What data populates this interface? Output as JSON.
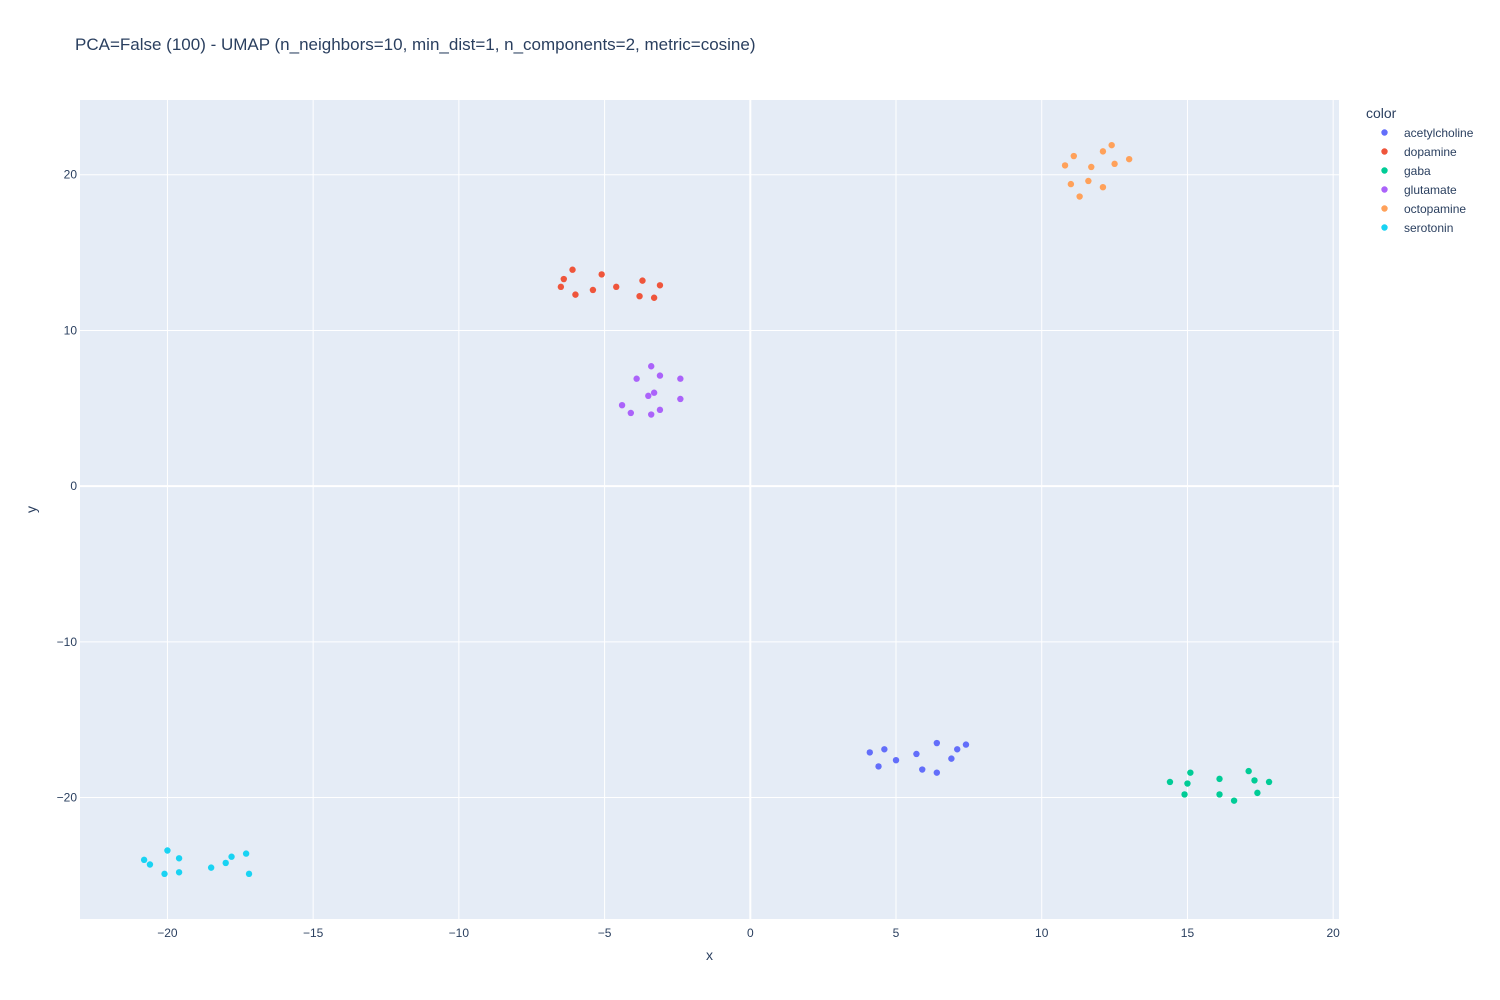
{
  "chart_data": {
    "type": "scatter",
    "title": "PCA=False (100) - UMAP (n_neighbors=10, min_dist=1, n_components=2, metric=cosine)",
    "xlabel": "x",
    "ylabel": "y",
    "xlim": [
      -23,
      20.2
    ],
    "ylim": [
      -27.8,
      24.8
    ],
    "xticks": [
      -20,
      -15,
      -10,
      -5,
      0,
      5,
      10,
      15,
      20
    ],
    "yticks": [
      -20,
      -10,
      0,
      10,
      20
    ],
    "tick_labels_x": [
      "−20",
      "−15",
      "−10",
      "−5",
      "0",
      "5",
      "10",
      "15",
      "20"
    ],
    "tick_labels_y": [
      "−20",
      "−10",
      "0",
      "10",
      "20"
    ],
    "grid": true,
    "legend_title": "color",
    "legend_position": "top-right",
    "colors": {
      "plot_bg": "#e5ecf6",
      "grid": "#ffffff",
      "text": "#2a3f5f"
    },
    "series": [
      {
        "name": "acetylcholine",
        "color": "#636efa",
        "points": [
          [
            4.1,
            -17.1
          ],
          [
            4.4,
            -18.0
          ],
          [
            4.6,
            -16.9
          ],
          [
            5.0,
            -17.6
          ],
          [
            5.7,
            -17.2
          ],
          [
            5.9,
            -18.2
          ],
          [
            6.4,
            -16.5
          ],
          [
            6.4,
            -18.4
          ],
          [
            6.9,
            -17.5
          ],
          [
            7.1,
            -16.9
          ],
          [
            7.4,
            -16.6
          ]
        ]
      },
      {
        "name": "dopamine",
        "color": "#ef553b",
        "points": [
          [
            -6.5,
            12.8
          ],
          [
            -6.4,
            13.3
          ],
          [
            -6.1,
            13.9
          ],
          [
            -6.0,
            12.3
          ],
          [
            -5.4,
            12.6
          ],
          [
            -5.1,
            13.6
          ],
          [
            -4.6,
            12.8
          ],
          [
            -3.8,
            12.2
          ],
          [
            -3.7,
            13.2
          ],
          [
            -3.3,
            12.1
          ],
          [
            -3.1,
            12.9
          ]
        ]
      },
      {
        "name": "gaba",
        "color": "#00cc96",
        "points": [
          [
            14.4,
            -19.0
          ],
          [
            14.9,
            -19.8
          ],
          [
            15.0,
            -19.1
          ],
          [
            15.1,
            -18.4
          ],
          [
            16.1,
            -18.8
          ],
          [
            16.1,
            -19.8
          ],
          [
            16.6,
            -20.2
          ],
          [
            17.1,
            -18.3
          ],
          [
            17.3,
            -18.9
          ],
          [
            17.4,
            -19.7
          ],
          [
            17.8,
            -19.0
          ]
        ]
      },
      {
        "name": "glutamate",
        "color": "#ab63fa",
        "points": [
          [
            -4.4,
            5.2
          ],
          [
            -4.1,
            4.7
          ],
          [
            -3.9,
            6.9
          ],
          [
            -3.5,
            5.8
          ],
          [
            -3.4,
            7.7
          ],
          [
            -3.4,
            4.6
          ],
          [
            -3.3,
            6.0
          ],
          [
            -3.1,
            7.1
          ],
          [
            -3.1,
            4.9
          ],
          [
            -2.4,
            6.9
          ],
          [
            -2.4,
            5.6
          ]
        ]
      },
      {
        "name": "octopamine",
        "color": "#ffa15a",
        "points": [
          [
            10.8,
            20.6
          ],
          [
            11.0,
            19.4
          ],
          [
            11.1,
            21.2
          ],
          [
            11.3,
            18.6
          ],
          [
            11.6,
            19.6
          ],
          [
            11.7,
            20.5
          ],
          [
            12.1,
            21.5
          ],
          [
            12.1,
            19.2
          ],
          [
            12.4,
            21.9
          ],
          [
            12.5,
            20.7
          ],
          [
            13.0,
            21.0
          ]
        ]
      },
      {
        "name": "serotonin",
        "color": "#19d3f3",
        "points": [
          [
            -20.8,
            -24.0
          ],
          [
            -20.6,
            -24.3
          ],
          [
            -20.1,
            -24.9
          ],
          [
            -20.0,
            -23.4
          ],
          [
            -19.6,
            -24.8
          ],
          [
            -19.6,
            -23.9
          ],
          [
            -18.5,
            -24.5
          ],
          [
            -18.0,
            -24.2
          ],
          [
            -17.8,
            -23.8
          ],
          [
            -17.3,
            -23.6
          ],
          [
            -17.2,
            -24.9
          ]
        ]
      }
    ]
  }
}
